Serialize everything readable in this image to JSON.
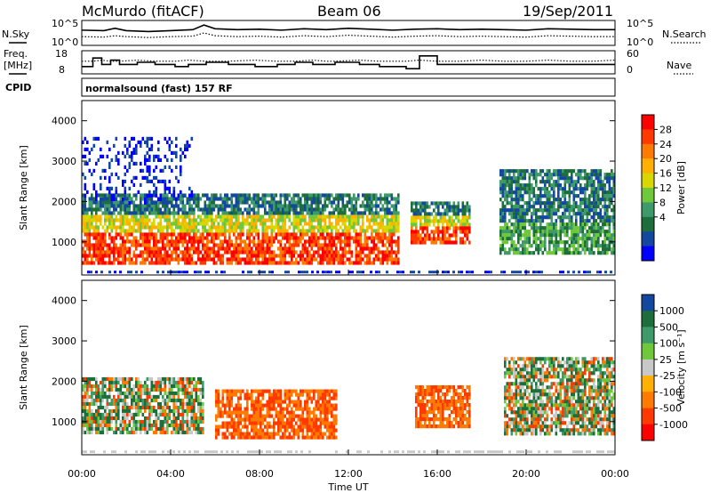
{
  "header": {
    "station": "McMurdo (fitACF)",
    "beam": "Beam 06",
    "date": "19/Sep/2011"
  },
  "top_panels": {
    "nsky_label": "N.Sky",
    "nsearch_label": "N.Search",
    "noise_ticks": [
      "10^5",
      "10^0"
    ],
    "freq_label_1": "Freq.",
    "freq_label_2": "[MHz]",
    "freq_ticks": [
      "18",
      "8"
    ],
    "nave_label": "Nave",
    "nave_ticks": [
      "60",
      "0"
    ],
    "cpid_label": "CPID",
    "cpid_text": "normalsound (fast) 157 RF"
  },
  "chart_data": [
    {
      "type": "line",
      "title": "",
      "xlabel": "",
      "ylabel": "N.Sky / N.Search",
      "yscale": "log",
      "ylim_exp": [
        0,
        5
      ],
      "x_hours": [
        0,
        1,
        1.5,
        2,
        3,
        4,
        5,
        5.5,
        6,
        7,
        8,
        9,
        10,
        11,
        12,
        13,
        14,
        15,
        16,
        17,
        18,
        19,
        20,
        21,
        22,
        23,
        24
      ],
      "series": [
        {
          "name": "N.Sky",
          "values_exp": [
            3.1,
            3.0,
            3.5,
            3.0,
            2.8,
            3.0,
            3.2,
            4.2,
            3.4,
            3.2,
            3.3,
            3.1,
            3.4,
            3.2,
            3.5,
            3.3,
            3.1,
            3.3,
            3.4,
            3.2,
            3.3,
            3.2,
            3.1,
            3.4,
            3.3,
            3.2,
            3.2
          ]
        },
        {
          "name": "N.Search",
          "values_exp": [
            1.7,
            1.6,
            1.9,
            1.7,
            1.5,
            1.7,
            1.8,
            2.5,
            1.9,
            1.7,
            1.8,
            1.6,
            1.9,
            1.7,
            2.0,
            1.8,
            1.6,
            1.8,
            1.9,
            1.7,
            1.8,
            1.7,
            1.6,
            1.9,
            1.8,
            1.7,
            1.7
          ]
        }
      ]
    },
    {
      "type": "line",
      "title": "",
      "xlabel": "",
      "ylabel": "Freq. [MHz] / Nave",
      "ylim": [
        8,
        18
      ],
      "x_hours": [
        0,
        0.5,
        0.9,
        1.3,
        1.7,
        2.5,
        3.3,
        4.2,
        4.8,
        5.6,
        6.6,
        7.8,
        8.8,
        9.6,
        10.4,
        11.0,
        11.4,
        12.5,
        13.4,
        14.6,
        15.2,
        16.0,
        17.0,
        18.0,
        19.0,
        20.0,
        21.0,
        22.0,
        23.0,
        24.0
      ],
      "series": [
        {
          "name": "Freq",
          "values": [
            11,
            15,
            12,
            14,
            12,
            13,
            12,
            11,
            12,
            13,
            12,
            11,
            12,
            13,
            12,
            12,
            13,
            12,
            11,
            10,
            16,
            12,
            12,
            12,
            12,
            12,
            12,
            12,
            12,
            12
          ]
        },
        {
          "name": "Nave",
          "values_ratio": [
            0.55,
            0.55,
            0.6,
            0.55,
            0.55,
            0.6,
            0.55,
            0.55,
            0.6,
            0.55,
            0.55,
            0.6,
            0.55,
            0.55,
            0.6,
            0.55,
            0.55,
            0.6,
            0.55,
            0.55,
            0.6,
            0.55,
            0.55,
            0.6,
            0.55,
            0.55,
            0.6,
            0.55,
            0.55,
            0.6
          ]
        }
      ]
    },
    {
      "type": "heatmap",
      "title": "",
      "xlabel": "",
      "ylabel": "Slant Range [km]",
      "xlim_hours": [
        0,
        24
      ],
      "ylim": [
        180,
        4500
      ],
      "colorbar_label": "Power [dB]",
      "colorbar_ticks": [
        "28",
        "24",
        "20",
        "16",
        "12",
        "8",
        "4"
      ],
      "colorbar_colors": [
        "#ff0000",
        "#ff3a00",
        "#ff7a00",
        "#ffb000",
        "#d8d800",
        "#6fc83c",
        "#3e9a6a",
        "#1e6e3c",
        "#1448a0",
        "#0000ff"
      ],
      "yticks": [
        1000,
        2000,
        3000,
        4000
      ],
      "regions": [
        {
          "h0": 0.0,
          "h1": 14.3,
          "r0": 500,
          "r1": 2200,
          "level": "strong"
        },
        {
          "h0": 14.8,
          "h1": 17.5,
          "r0": 1000,
          "r1": 2000,
          "level": "strong"
        },
        {
          "h0": 18.8,
          "h1": 24.0,
          "r0": 700,
          "r1": 2800,
          "level": "moderate"
        },
        {
          "h0": 0.0,
          "h1": 5.0,
          "r0": 2000,
          "r1": 3600,
          "level": "weak"
        }
      ]
    },
    {
      "type": "heatmap",
      "title": "",
      "xlabel": "Time UT",
      "ylabel": "Slant Range [km]",
      "xlim_hours": [
        0,
        24
      ],
      "ylim": [
        180,
        4500
      ],
      "colorbar_label": "Velocity [m s⁻¹]",
      "colorbar_ticks": [
        "1000",
        "500",
        "100",
        "25",
        "-25",
        "-100",
        "-500",
        "-1000"
      ],
      "colorbar_colors": [
        "#1448a0",
        "#1e6e3c",
        "#3e9a6a",
        "#6fc83c",
        "#c8c8c8",
        "#ffb000",
        "#ff7a00",
        "#ff3a00",
        "#ff0000"
      ],
      "yticks": [
        1000,
        2000,
        3000,
        4000
      ],
      "xticks": [
        "00:00",
        "04:00",
        "08:00",
        "12:00",
        "16:00",
        "20:00",
        "00:00"
      ],
      "regions": [
        {
          "h0": 0.0,
          "h1": 5.5,
          "r0": 700,
          "r1": 2100,
          "level": "mixed"
        },
        {
          "h0": 6.0,
          "h1": 11.5,
          "r0": 600,
          "r1": 1800,
          "level": "away"
        },
        {
          "h0": 15.0,
          "h1": 17.5,
          "r0": 900,
          "r1": 1900,
          "level": "away"
        },
        {
          "h0": 19.0,
          "h1": 24.0,
          "r0": 700,
          "r1": 2600,
          "level": "mixed"
        }
      ]
    }
  ]
}
